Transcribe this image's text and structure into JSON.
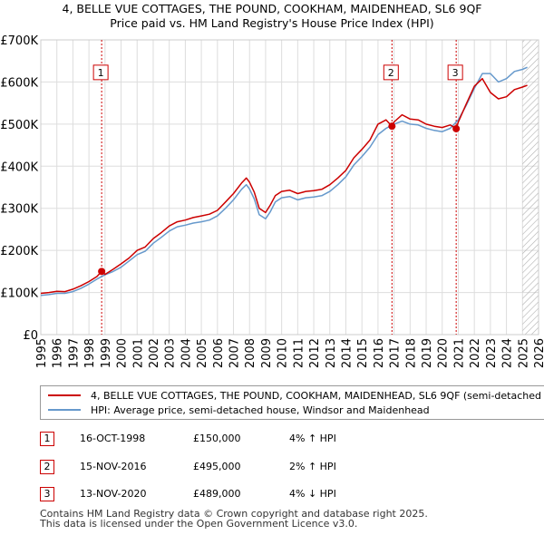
{
  "title_line1": "4, BELLE VUE COTTAGES, THE POUND, COOKHAM, MAIDENHEAD, SL6 9QF",
  "title_line2": "Price paid vs. HM Land Registry's House Price Index (HPI)",
  "colors": {
    "property": "#cc0000",
    "hpi": "#6699cc",
    "grid": "#dddddd",
    "marker_line": "#cc0000",
    "hatch": "#b0b0b0"
  },
  "chart_data": {
    "type": "line",
    "ylim": [
      0,
      700000
    ],
    "xlim": [
      1995.0,
      2026.0
    ],
    "y_ticks": [
      0,
      100000,
      200000,
      300000,
      400000,
      500000,
      600000,
      700000
    ],
    "y_tick_labels": [
      "£0",
      "£100K",
      "£200K",
      "£300K",
      "£400K",
      "£500K",
      "£600K",
      "£700K"
    ],
    "x_ticks": [
      "1995",
      "1996",
      "1997",
      "1998",
      "1999",
      "2000",
      "2001",
      "2002",
      "2003",
      "2004",
      "2005",
      "2006",
      "2007",
      "2008",
      "2009",
      "2010",
      "2011",
      "2012",
      "2013",
      "2014",
      "2015",
      "2016",
      "2017",
      "2018",
      "2019",
      "2020",
      "2021",
      "2022",
      "2023",
      "2024",
      "2025",
      "2026"
    ],
    "hatch_from": 2025.0,
    "series": [
      {
        "name": "4, BELLE VUE COTTAGES, THE POUND, COOKHAM, MAIDENHEAD, SL6 9QF (semi-detached house)",
        "x": [
          1995.0,
          1995.5,
          1996.0,
          1996.5,
          1997.0,
          1997.5,
          1998.0,
          1998.5,
          1998.79,
          1999.0,
          1999.5,
          2000.0,
          2000.5,
          2001.0,
          2001.5,
          2002.0,
          2002.5,
          2003.0,
          2003.5,
          2004.0,
          2004.5,
          2005.0,
          2005.5,
          2006.0,
          2006.5,
          2007.0,
          2007.5,
          2007.8,
          2008.0,
          2008.3,
          2008.6,
          2009.0,
          2009.3,
          2009.6,
          2010.0,
          2010.5,
          2011.0,
          2011.5,
          2012.0,
          2012.5,
          2013.0,
          2013.5,
          2014.0,
          2014.5,
          2015.0,
          2015.5,
          2016.0,
          2016.5,
          2016.87,
          2017.0,
          2017.5,
          2018.0,
          2018.5,
          2019.0,
          2019.5,
          2020.0,
          2020.5,
          2020.87,
          2021.0,
          2021.5,
          2022.0,
          2022.5,
          2023.0,
          2023.5,
          2024.0,
          2024.5,
          2025.0,
          2025.3
        ],
        "values": [
          98000,
          100000,
          103000,
          102000,
          108000,
          116000,
          126000,
          138000,
          150000,
          143000,
          155000,
          168000,
          182000,
          200000,
          208000,
          228000,
          242000,
          258000,
          268000,
          272000,
          278000,
          282000,
          286000,
          295000,
          315000,
          335000,
          360000,
          372000,
          362000,
          338000,
          300000,
          290000,
          308000,
          330000,
          340000,
          343000,
          335000,
          340000,
          342000,
          345000,
          356000,
          372000,
          390000,
          420000,
          440000,
          462000,
          500000,
          510000,
          495000,
          505000,
          522000,
          512000,
          510000,
          500000,
          495000,
          492000,
          498000,
          489000,
          505000,
          548000,
          590000,
          608000,
          575000,
          560000,
          565000,
          582000,
          588000,
          592000
        ]
      },
      {
        "name": "HPI: Average price, semi-detached house, Windsor and Maidenhead",
        "x": [
          1995.0,
          1995.5,
          1996.0,
          1996.5,
          1997.0,
          1997.5,
          1998.0,
          1998.5,
          1999.0,
          1999.5,
          2000.0,
          2000.5,
          2001.0,
          2001.5,
          2002.0,
          2002.5,
          2003.0,
          2003.5,
          2004.0,
          2004.5,
          2005.0,
          2005.5,
          2006.0,
          2006.5,
          2007.0,
          2007.5,
          2007.8,
          2008.0,
          2008.3,
          2008.6,
          2009.0,
          2009.3,
          2009.6,
          2010.0,
          2010.5,
          2011.0,
          2011.5,
          2012.0,
          2012.5,
          2013.0,
          2013.5,
          2014.0,
          2014.5,
          2015.0,
          2015.5,
          2016.0,
          2016.5,
          2017.0,
          2017.5,
          2018.0,
          2018.5,
          2019.0,
          2019.5,
          2020.0,
          2020.5,
          2021.0,
          2021.5,
          2022.0,
          2022.5,
          2023.0,
          2023.5,
          2024.0,
          2024.5,
          2025.0,
          2025.3
        ],
        "values": [
          93000,
          95000,
          98000,
          98000,
          102000,
          110000,
          120000,
          132000,
          142000,
          150000,
          160000,
          175000,
          190000,
          198000,
          217000,
          231000,
          246000,
          256000,
          260000,
          265000,
          268000,
          272000,
          282000,
          300000,
          320000,
          345000,
          356000,
          346000,
          322000,
          285000,
          275000,
          292000,
          315000,
          325000,
          328000,
          320000,
          325000,
          327000,
          330000,
          340000,
          356000,
          375000,
          403000,
          423000,
          445000,
          475000,
          490000,
          500000,
          507000,
          500000,
          498000,
          490000,
          485000,
          482000,
          490000,
          510000,
          545000,
          585000,
          620000,
          620000,
          600000,
          608000,
          625000,
          630000,
          635000
        ]
      }
    ],
    "sales": [
      {
        "label": "1",
        "x": 1998.79,
        "date": "16-OCT-1998",
        "price": 150000,
        "price_text": "£150,000",
        "hpi_text": "4% ↑ HPI"
      },
      {
        "label": "2",
        "x": 2016.87,
        "date": "15-NOV-2016",
        "price": 495000,
        "price_text": "£495,000",
        "hpi_text": "2% ↑ HPI"
      },
      {
        "label": "3",
        "x": 2020.87,
        "date": "13-NOV-2020",
        "price": 489000,
        "price_text": "£489,000",
        "hpi_text": "4% ↓ HPI"
      }
    ]
  },
  "legend": {
    "property_label": "4, BELLE VUE COTTAGES, THE POUND, COOKHAM, MAIDENHEAD, SL6 9QF (semi-detached house)",
    "hpi_label": "HPI: Average price, semi-detached house, Windsor and Maidenhead"
  },
  "footer": {
    "line1": "Contains HM Land Registry data © Crown copyright and database right 2025.",
    "line2": "This data is licensed under the Open Government Licence v3.0."
  }
}
